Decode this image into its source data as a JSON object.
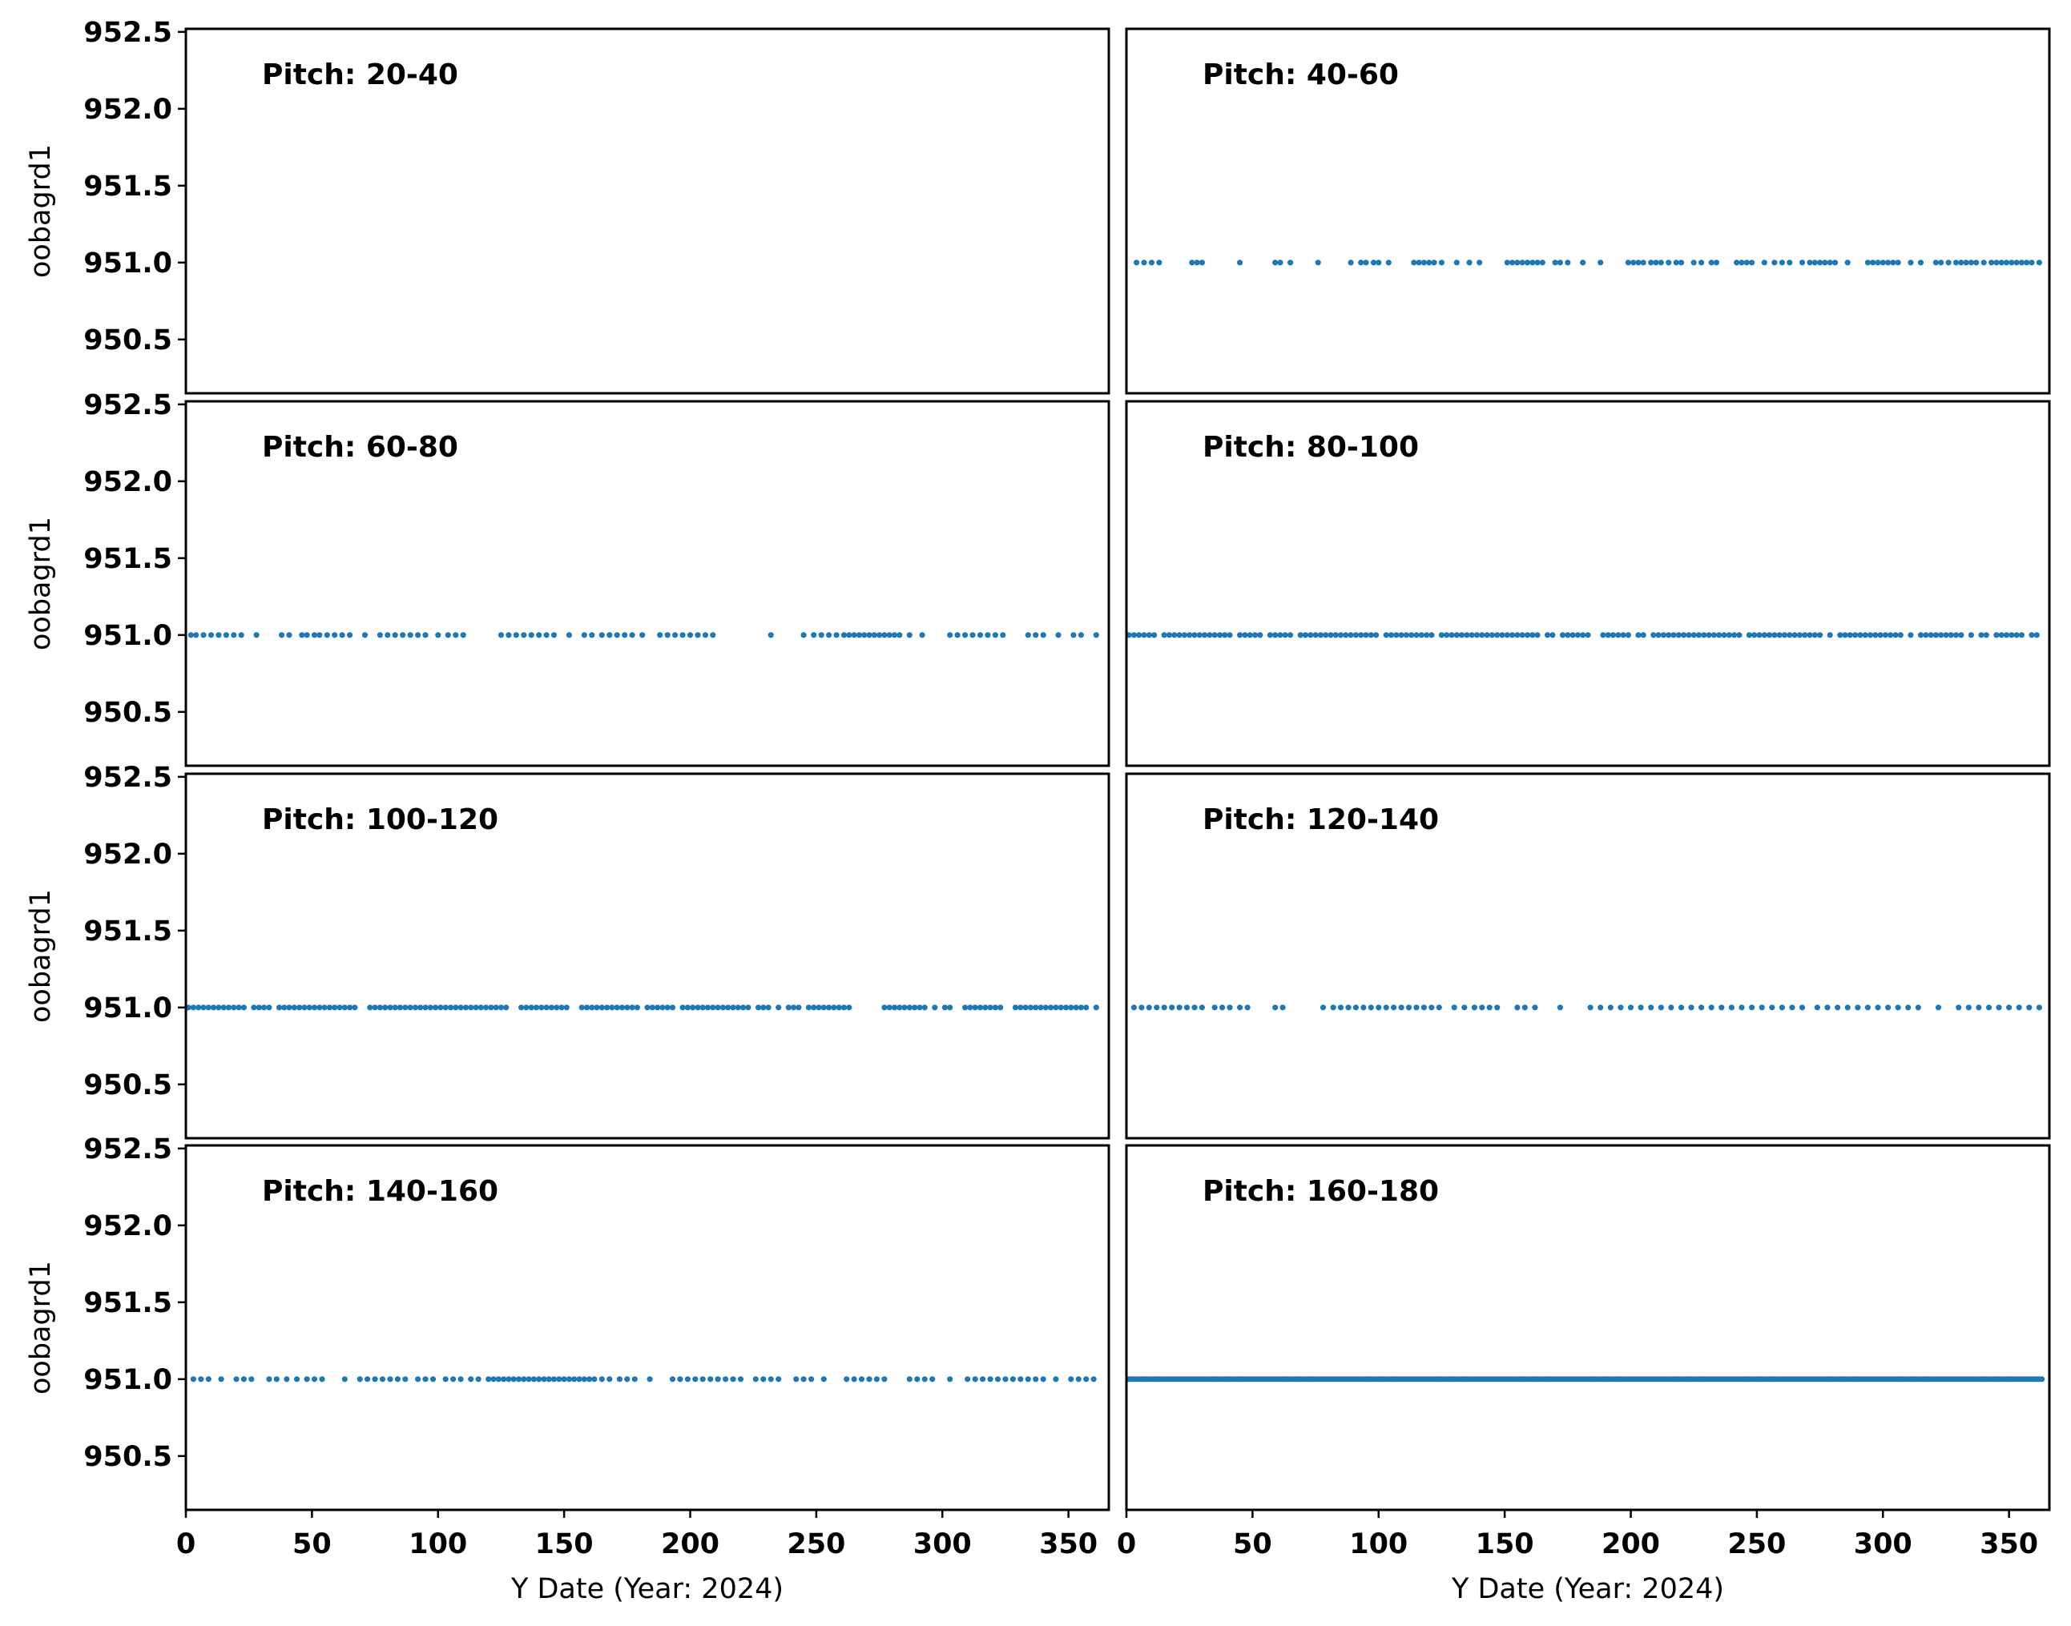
{
  "colors": {
    "points": "#1f77b4",
    "frame": "#000000"
  },
  "chart_data": {
    "type": "scatter",
    "layout": {
      "rows": 4,
      "cols": 2,
      "sharex": true,
      "sharey": true
    },
    "x_axis": {
      "label": "Y Date (Year: 2024)",
      "lim": [
        0,
        366
      ],
      "ticks": [
        0,
        50,
        100,
        150,
        200,
        250,
        300,
        350
      ],
      "tick_labels": [
        "0",
        "50",
        "100",
        "150",
        "200",
        "250",
        "300",
        "350"
      ]
    },
    "y_axis": {
      "label": "oobagrd1",
      "lim": [
        950.15,
        952.52
      ],
      "ticks": [
        950.5,
        951.0,
        951.5,
        952.0,
        952.5
      ],
      "tick_labels": [
        "950.5",
        "951.0",
        "951.5",
        "952.0",
        "952.5"
      ]
    },
    "grid": false,
    "panels": [
      {
        "label": "Pitch: 20-40",
        "y": 951.0,
        "x": []
      },
      {
        "label": "Pitch: 40-60",
        "y": 951.0,
        "x": [
          4,
          7,
          10,
          13,
          26,
          28,
          30,
          45,
          59,
          61,
          65,
          76,
          89,
          93,
          95,
          98,
          100,
          104,
          114,
          116,
          118,
          120,
          122,
          125,
          131,
          136,
          140,
          151,
          153,
          155,
          157,
          159,
          161,
          163,
          165,
          170,
          172,
          175,
          181,
          188,
          199,
          201,
          203,
          205,
          208,
          210,
          212,
          215,
          218,
          220,
          225,
          228,
          232,
          234,
          242,
          244,
          246,
          248,
          253,
          257,
          260,
          263,
          268,
          271,
          273,
          275,
          277,
          279,
          281,
          286,
          294,
          296,
          298,
          300,
          302,
          304,
          306,
          311,
          315,
          321,
          323,
          326,
          329,
          331,
          333,
          335,
          337,
          340,
          343,
          345,
          347,
          349,
          351,
          353,
          355,
          357,
          359,
          362
        ]
      },
      {
        "label": "Pitch: 60-80",
        "y": 951.0,
        "x": [
          2,
          4,
          7,
          10,
          13,
          16,
          19,
          22,
          28,
          38,
          41,
          46,
          48,
          51,
          53,
          56,
          59,
          62,
          65,
          71,
          77,
          80,
          83,
          86,
          89,
          92,
          95,
          100,
          104,
          107,
          110,
          125,
          128,
          131,
          134,
          137,
          140,
          143,
          146,
          152,
          158,
          161,
          165,
          168,
          171,
          174,
          177,
          181,
          188,
          191,
          194,
          197,
          200,
          203,
          206,
          209,
          232,
          245,
          249,
          252,
          255,
          258,
          261,
          263,
          265,
          267,
          269,
          271,
          273,
          275,
          277,
          279,
          281,
          283,
          287,
          292,
          303,
          306,
          309,
          312,
          315,
          318,
          321,
          324,
          334,
          337,
          340,
          346,
          352,
          355,
          361
        ]
      },
      {
        "label": "Pitch: 80-100",
        "y": 951.0,
        "x": [
          1,
          3,
          5,
          7,
          9,
          11,
          15,
          17,
          19,
          21,
          23,
          25,
          27,
          29,
          31,
          33,
          35,
          37,
          39,
          41,
          45,
          47,
          49,
          51,
          53,
          57,
          59,
          61,
          63,
          65,
          69,
          71,
          73,
          75,
          77,
          79,
          81,
          83,
          85,
          87,
          89,
          91,
          93,
          95,
          97,
          99,
          103,
          105,
          107,
          109,
          111,
          113,
          115,
          117,
          119,
          121,
          125,
          127,
          129,
          131,
          133,
          135,
          137,
          139,
          141,
          143,
          145,
          147,
          149,
          151,
          153,
          155,
          157,
          159,
          161,
          163,
          167,
          169,
          173,
          175,
          177,
          179,
          181,
          183,
          189,
          191,
          193,
          195,
          197,
          199,
          203,
          205,
          209,
          211,
          213,
          215,
          217,
          219,
          221,
          223,
          225,
          227,
          229,
          231,
          233,
          235,
          237,
          239,
          241,
          243,
          247,
          249,
          251,
          253,
          255,
          257,
          259,
          261,
          263,
          265,
          267,
          269,
          271,
          273,
          275,
          279,
          283,
          285,
          287,
          289,
          291,
          293,
          295,
          297,
          299,
          301,
          303,
          305,
          307,
          311,
          315,
          317,
          319,
          321,
          323,
          325,
          327,
          329,
          331,
          335,
          339,
          341,
          345,
          347,
          349,
          351,
          353,
          355,
          359,
          361
        ]
      },
      {
        "label": "Pitch: 100-120",
        "y": 951.0,
        "x": [
          1,
          3,
          5,
          7,
          9,
          11,
          13,
          15,
          17,
          19,
          21,
          23,
          27,
          29,
          31,
          33,
          37,
          39,
          41,
          43,
          45,
          47,
          49,
          51,
          53,
          55,
          57,
          59,
          61,
          63,
          65,
          67,
          73,
          75,
          77,
          79,
          81,
          83,
          85,
          87,
          89,
          91,
          93,
          95,
          97,
          99,
          101,
          103,
          105,
          107,
          109,
          111,
          113,
          115,
          117,
          119,
          121,
          123,
          125,
          127,
          133,
          135,
          137,
          139,
          141,
          143,
          145,
          147,
          149,
          151,
          157,
          159,
          161,
          163,
          165,
          167,
          169,
          171,
          173,
          175,
          177,
          179,
          183,
          185,
          187,
          189,
          191,
          193,
          197,
          199,
          201,
          203,
          205,
          207,
          209,
          211,
          213,
          215,
          217,
          219,
          221,
          223,
          227,
          229,
          231,
          235,
          239,
          241,
          243,
          247,
          249,
          251,
          253,
          255,
          257,
          259,
          261,
          263,
          277,
          279,
          281,
          283,
          285,
          287,
          289,
          291,
          293,
          297,
          301,
          303,
          309,
          311,
          313,
          315,
          317,
          319,
          321,
          323,
          329,
          331,
          333,
          335,
          337,
          339,
          341,
          343,
          345,
          347,
          349,
          351,
          353,
          355,
          357,
          361
        ]
      },
      {
        "label": "Pitch: 120-140",
        "y": 951.0,
        "x": [
          3,
          6,
          9,
          12,
          15,
          18,
          21,
          24,
          27,
          30,
          35,
          38,
          41,
          45,
          48,
          59,
          62,
          78,
          82,
          85,
          88,
          91,
          94,
          97,
          100,
          103,
          106,
          109,
          112,
          115,
          118,
          121,
          124,
          130,
          134,
          138,
          141,
          144,
          147,
          155,
          158,
          162,
          172,
          184,
          188,
          192,
          196,
          200,
          204,
          208,
          212,
          216,
          220,
          224,
          228,
          232,
          236,
          240,
          244,
          248,
          252,
          256,
          260,
          264,
          268,
          274,
          278,
          282,
          286,
          290,
          294,
          298,
          302,
          306,
          310,
          314,
          322,
          330,
          334,
          338,
          342,
          346,
          350,
          354,
          358,
          362
        ]
      },
      {
        "label": "Pitch: 140-160",
        "y": 951.0,
        "x": [
          3,
          6,
          9,
          14,
          20,
          23,
          26,
          33,
          36,
          40,
          44,
          48,
          51,
          54,
          63,
          69,
          72,
          75,
          78,
          81,
          84,
          87,
          92,
          95,
          98,
          103,
          106,
          109,
          113,
          116,
          120,
          122,
          124,
          126,
          128,
          130,
          132,
          134,
          136,
          138,
          140,
          142,
          144,
          146,
          148,
          150,
          152,
          154,
          156,
          158,
          160,
          162,
          165,
          168,
          172,
          175,
          178,
          184,
          193,
          196,
          199,
          202,
          205,
          208,
          211,
          214,
          217,
          220,
          226,
          229,
          232,
          235,
          242,
          245,
          248,
          253,
          262,
          265,
          268,
          271,
          274,
          277,
          287,
          290,
          293,
          296,
          303,
          310,
          313,
          316,
          319,
          322,
          325,
          328,
          331,
          334,
          337,
          340,
          345,
          351,
          354,
          357,
          360
        ]
      },
      {
        "label": "Pitch: 160-180",
        "y": 951.0,
        "x": [
          1,
          2,
          3,
          4,
          5,
          6,
          7,
          8,
          9,
          10,
          11,
          12,
          13,
          14,
          15,
          16,
          17,
          18,
          19,
          20,
          21,
          22,
          23,
          24,
          25,
          26,
          27,
          28,
          29,
          30,
          31,
          32,
          33,
          34,
          35,
          36,
          37,
          38,
          39,
          40,
          41,
          42,
          43,
          44,
          45,
          46,
          47,
          48,
          49,
          50,
          51,
          52,
          53,
          54,
          55,
          56,
          57,
          58,
          59,
          60,
          61,
          62,
          63,
          64,
          65,
          66,
          67,
          68,
          69,
          70,
          71,
          72,
          73,
          74,
          75,
          76,
          77,
          78,
          79,
          80,
          81,
          82,
          83,
          84,
          85,
          86,
          87,
          88,
          89,
          90,
          91,
          92,
          93,
          94,
          95,
          96,
          97,
          98,
          99,
          100,
          101,
          102,
          103,
          104,
          105,
          106,
          107,
          108,
          109,
          110,
          111,
          112,
          113,
          114,
          115,
          116,
          117,
          118,
          119,
          120,
          121,
          122,
          123,
          124,
          125,
          126,
          127,
          128,
          129,
          130,
          131,
          132,
          133,
          134,
          135,
          136,
          137,
          138,
          139,
          140,
          141,
          142,
          143,
          144,
          145,
          146,
          147,
          148,
          149,
          150,
          151,
          152,
          153,
          154,
          155,
          156,
          157,
          158,
          159,
          160,
          161,
          162,
          163,
          164,
          165,
          166,
          167,
          168,
          169,
          170,
          171,
          172,
          173,
          174,
          175,
          176,
          177,
          178,
          179,
          180,
          181,
          182,
          183,
          184,
          185,
          186,
          187,
          188,
          189,
          190,
          191,
          192,
          193,
          194,
          195,
          196,
          197,
          198,
          199,
          200,
          201,
          202,
          203,
          204,
          205,
          206,
          207,
          208,
          209,
          210,
          211,
          212,
          213,
          214,
          215,
          216,
          217,
          218,
          219,
          220,
          221,
          222,
          223,
          224,
          225,
          226,
          227,
          228,
          229,
          230,
          231,
          232,
          233,
          234,
          235,
          236,
          237,
          238,
          239,
          240,
          241,
          242,
          243,
          244,
          245,
          246,
          247,
          248,
          249,
          250,
          251,
          252,
          253,
          254,
          255,
          256,
          257,
          258,
          259,
          260,
          261,
          262,
          263,
          264,
          265,
          266,
          267,
          268,
          269,
          270,
          271,
          272,
          273,
          274,
          275,
          276,
          277,
          278,
          279,
          280,
          281,
          282,
          283,
          284,
          285,
          286,
          287,
          288,
          289,
          290,
          291,
          292,
          293,
          294,
          295,
          296,
          297,
          298,
          299,
          300,
          301,
          302,
          303,
          304,
          305,
          306,
          307,
          308,
          309,
          310,
          311,
          312,
          313,
          314,
          315,
          316,
          317,
          318,
          319,
          320,
          321,
          322,
          323,
          324,
          325,
          326,
          327,
          328,
          329,
          330,
          331,
          332,
          333,
          334,
          335,
          336,
          337,
          338,
          339,
          340,
          341,
          342,
          343,
          344,
          345,
          346,
          347,
          348,
          349,
          350,
          351,
          352,
          353,
          354,
          355,
          356,
          357,
          358,
          359,
          360,
          361,
          362,
          363
        ]
      }
    ]
  }
}
